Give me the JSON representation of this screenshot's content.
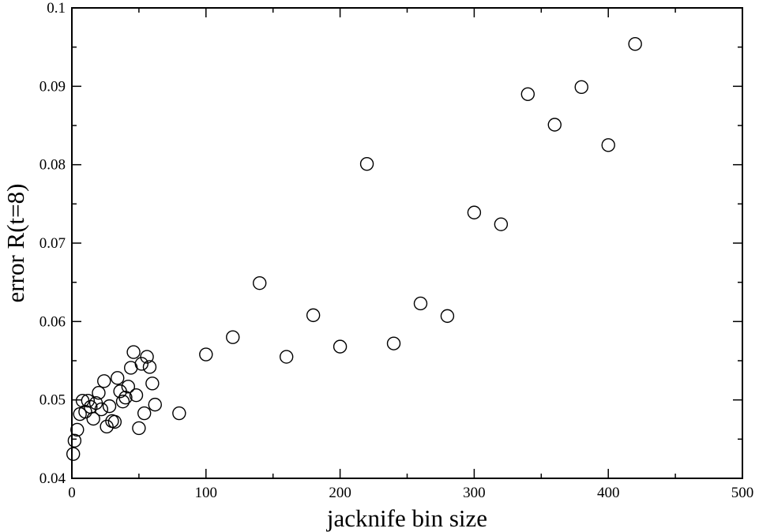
{
  "chart_data": {
    "type": "scatter",
    "title": "",
    "xlabel": "jacknife bin size",
    "ylabel": "error R(t=8)",
    "xlim": [
      0,
      500
    ],
    "ylim": [
      0.04,
      0.1
    ],
    "xticks": [
      0,
      100,
      200,
      300,
      400,
      500
    ],
    "xtick_labels": [
      "0",
      "100",
      "200",
      "300",
      "400",
      "500"
    ],
    "yticks": [
      0.04,
      0.05,
      0.06,
      0.07,
      0.08,
      0.09,
      0.1
    ],
    "ytick_labels": [
      "0.04",
      "0.05",
      "0.06",
      "0.07",
      "0.08",
      "0.09",
      "0.1"
    ],
    "grid": false,
    "marker": "open-circle",
    "series": [
      {
        "points": [
          [
            1,
            0.0431
          ],
          [
            2,
            0.0448
          ],
          [
            4,
            0.0462
          ],
          [
            6,
            0.0482
          ],
          [
            8,
            0.0499
          ],
          [
            10,
            0.0485
          ],
          [
            12,
            0.0499
          ],
          [
            14,
            0.0491
          ],
          [
            16,
            0.0476
          ],
          [
            18,
            0.0496
          ],
          [
            20,
            0.0509
          ],
          [
            22,
            0.0488
          ],
          [
            24,
            0.0524
          ],
          [
            26,
            0.0466
          ],
          [
            28,
            0.0492
          ],
          [
            30,
            0.0473
          ],
          [
            32,
            0.0472
          ],
          [
            34,
            0.0528
          ],
          [
            36,
            0.0511
          ],
          [
            38,
            0.0498
          ],
          [
            40,
            0.0503
          ],
          [
            42,
            0.0517
          ],
          [
            44,
            0.0541
          ],
          [
            46,
            0.0561
          ],
          [
            48,
            0.0506
          ],
          [
            50,
            0.0464
          ],
          [
            52,
            0.0546
          ],
          [
            54,
            0.0483
          ],
          [
            56,
            0.0555
          ],
          [
            58,
            0.0542
          ],
          [
            60,
            0.0521
          ],
          [
            62,
            0.0494
          ],
          [
            80,
            0.0483
          ],
          [
            100,
            0.0558
          ],
          [
            120,
            0.058
          ],
          [
            140,
            0.0649
          ],
          [
            160,
            0.0555
          ],
          [
            180,
            0.0608
          ],
          [
            200,
            0.0568
          ],
          [
            220,
            0.0801
          ],
          [
            240,
            0.0572
          ],
          [
            260,
            0.0623
          ],
          [
            280,
            0.0607
          ],
          [
            300,
            0.0739
          ],
          [
            320,
            0.0724
          ],
          [
            340,
            0.089
          ],
          [
            360,
            0.0851
          ],
          [
            380,
            0.0899
          ],
          [
            400,
            0.0825
          ],
          [
            420,
            0.0954
          ]
        ]
      }
    ]
  }
}
